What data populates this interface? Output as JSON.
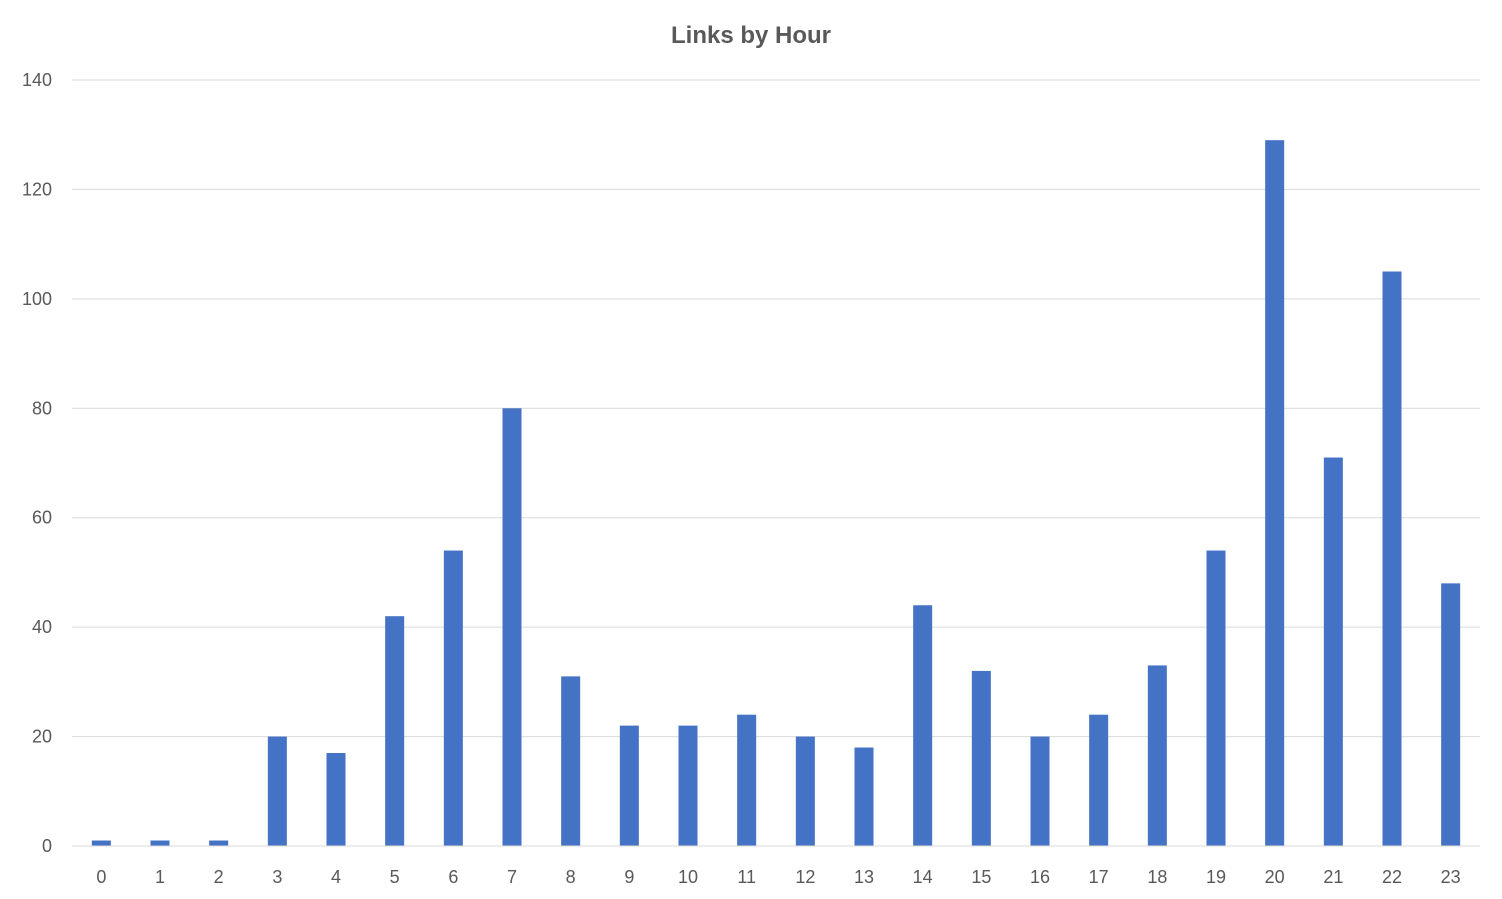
{
  "chart_data": {
    "type": "bar",
    "title": "Links by Hour",
    "xlabel": "",
    "ylabel": "",
    "categories": [
      "0",
      "1",
      "2",
      "3",
      "4",
      "5",
      "6",
      "7",
      "8",
      "9",
      "10",
      "11",
      "12",
      "13",
      "14",
      "15",
      "16",
      "17",
      "18",
      "19",
      "20",
      "21",
      "22",
      "23"
    ],
    "values": [
      1,
      1,
      1,
      20,
      17,
      42,
      54,
      80,
      31,
      22,
      22,
      24,
      20,
      18,
      44,
      32,
      20,
      24,
      33,
      54,
      129,
      71,
      105,
      48
    ],
    "ylim": [
      0,
      140
    ],
    "yticks": [
      0,
      20,
      40,
      60,
      80,
      100,
      120,
      140
    ],
    "grid": true,
    "legend": "none",
    "bar_color": "#4472C4",
    "grid_color": "#D9D9D9",
    "text_color": "#595959"
  }
}
